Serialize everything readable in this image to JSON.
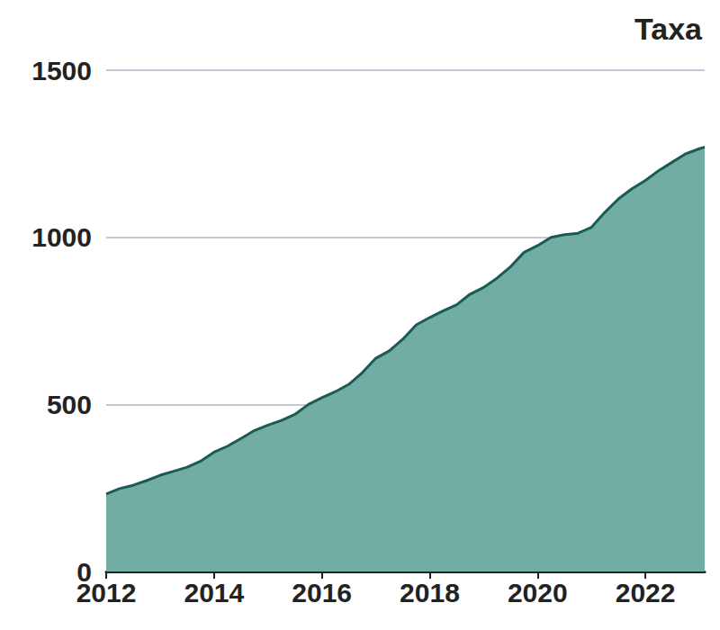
{
  "chart_data": {
    "type": "area",
    "title": "Taxa",
    "x": [
      2012.0,
      2012.25,
      2012.5,
      2012.75,
      2013.0,
      2013.25,
      2013.5,
      2013.75,
      2014.0,
      2014.25,
      2014.5,
      2014.75,
      2015.0,
      2015.25,
      2015.5,
      2015.75,
      2016.0,
      2016.25,
      2016.5,
      2016.75,
      2017.0,
      2017.25,
      2017.5,
      2017.75,
      2018.0,
      2018.25,
      2018.5,
      2018.75,
      2019.0,
      2019.25,
      2019.5,
      2019.75,
      2020.0,
      2020.25,
      2020.5,
      2020.75,
      2021.0,
      2021.25,
      2021.5,
      2021.75,
      2022.0,
      2022.25,
      2022.5,
      2022.75,
      2023.0,
      2023.1
    ],
    "values": [
      232,
      248,
      258,
      272,
      288,
      300,
      312,
      330,
      357,
      375,
      398,
      422,
      438,
      452,
      470,
      500,
      520,
      538,
      560,
      595,
      638,
      660,
      695,
      738,
      760,
      780,
      798,
      830,
      850,
      878,
      912,
      955,
      975,
      1000,
      1008,
      1012,
      1030,
      1075,
      1115,
      1145,
      1170,
      1200,
      1225,
      1250,
      1265,
      1270
    ],
    "color": "#72ada4",
    "xlim": [
      2012,
      2023.1
    ],
    "xticks": [
      2012,
      2014,
      2016,
      2018,
      2020,
      2022
    ],
    "ylim": [
      0,
      1500
    ],
    "yticks": [
      0,
      500,
      1000,
      1500
    ],
    "grid": true
  }
}
